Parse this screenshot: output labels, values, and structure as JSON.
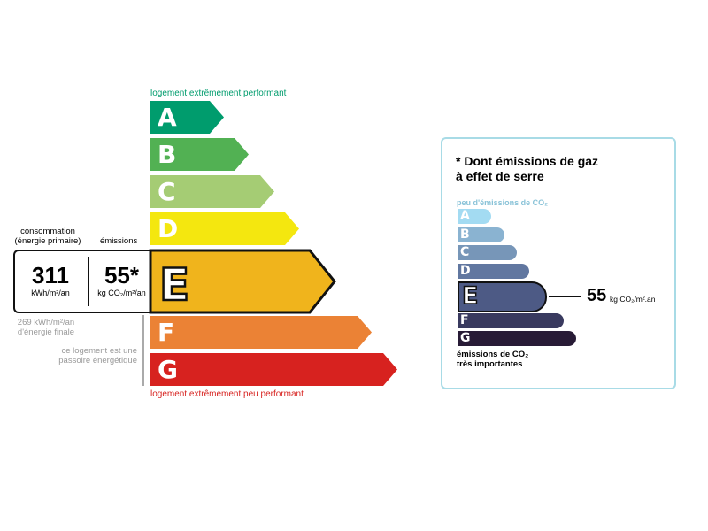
{
  "energy": {
    "top_label": "logement extrêmement performant",
    "bottom_label": "logement extrêmement peu performant",
    "classes": [
      {
        "letter": "A",
        "color": "#009c6d"
      },
      {
        "letter": "B",
        "color": "#52b153"
      },
      {
        "letter": "C",
        "color": "#a5cc74"
      },
      {
        "letter": "D",
        "color": "#f4e70f"
      },
      {
        "letter": "E",
        "color": "#f0b41c"
      },
      {
        "letter": "F",
        "color": "#eb8235"
      },
      {
        "letter": "G",
        "color": "#d7221f"
      }
    ],
    "current_class": "E",
    "consumption_label_1": "consommation",
    "consumption_label_2": "(énergie primaire)",
    "emissions_label": "émissions",
    "consumption_value": "311",
    "consumption_unit": "kWh/m²/an",
    "emissions_value": "55*",
    "emissions_unit": "kg CO₂/m²/an",
    "final_energy_1": "269 kWh/m²/an",
    "final_energy_2": "d'énergie finale",
    "passoire_1": "ce logement est une",
    "passoire_2": "passoire énergétique"
  },
  "ges": {
    "title_1": "* Dont émissions de gaz",
    "title_2": "à effet de serre",
    "top_label": "peu d'émissions de CO₂",
    "bottom_label_1": "émissions de CO₂",
    "bottom_label_2": "très importantes",
    "classes": [
      {
        "letter": "A",
        "color": "#a3dbf2"
      },
      {
        "letter": "B",
        "color": "#8ab3d1"
      },
      {
        "letter": "C",
        "color": "#7796b8"
      },
      {
        "letter": "D",
        "color": "#6177a0"
      },
      {
        "letter": "E",
        "color": "#4d5a85"
      },
      {
        "letter": "F",
        "color": "#393a5f"
      },
      {
        "letter": "G",
        "color": "#281b36"
      }
    ],
    "current_class": "E",
    "value": "55",
    "unit": "kg CO₂/m².an"
  }
}
